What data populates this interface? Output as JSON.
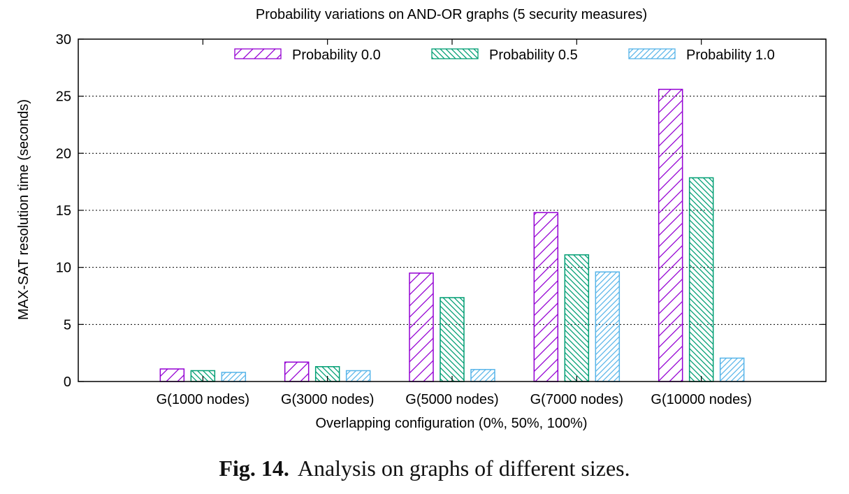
{
  "chart_data": {
    "type": "bar",
    "title": "Probability variations on AND-OR graphs (5 security measures)",
    "xlabel": "Overlapping configuration (0%, 50%, 100%)",
    "ylabel": "MAX-SAT resolution time (seconds)",
    "ylim": [
      0,
      30
    ],
    "yticks": [
      "0",
      "5",
      "10",
      "15",
      "20",
      "25",
      "30"
    ],
    "grid": true,
    "legend_position": "top",
    "categories": [
      "G(1000 nodes)",
      "G(3000 nodes)",
      "G(5000 nodes)",
      "G(7000 nodes)",
      "G(10000 nodes)"
    ],
    "series": [
      {
        "name": "Probability 0.0",
        "color": "#9400d3",
        "pattern": "hatch-forward",
        "values": [
          1.1,
          1.7,
          9.5,
          14.8,
          25.6
        ]
      },
      {
        "name": "Probability 0.5",
        "color": "#009e73",
        "pattern": "hatch-backward",
        "values": [
          0.95,
          1.3,
          7.35,
          11.1,
          17.85
        ]
      },
      {
        "name": "Probability 1.0",
        "color": "#56b4e9",
        "pattern": "hatch-forward-dense",
        "values": [
          0.8,
          0.95,
          1.05,
          9.6,
          2.05
        ]
      }
    ]
  },
  "caption": {
    "label": "Fig. 14.",
    "text": "Analysis on graphs of different sizes."
  }
}
